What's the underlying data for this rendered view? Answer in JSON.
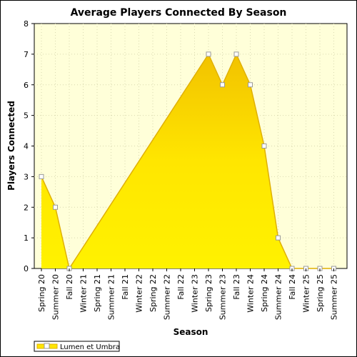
{
  "chart_data": {
    "type": "area",
    "title": "Average Players Connected By Season",
    "xlabel": "Season",
    "ylabel": "Players Connected",
    "ylim": [
      0,
      8
    ],
    "yticks": [
      "0",
      "1",
      "2",
      "3",
      "4",
      "5",
      "6",
      "7",
      "8"
    ],
    "grid": true,
    "legend_position": "bottom-left",
    "categories": [
      "Spring 20",
      "Summer 20",
      "Fall 20",
      "Winter 21",
      "Spring 21",
      "Summer 21",
      "Fall 21",
      "Winter 22",
      "Spring 22",
      "Summer 22",
      "Fall 22",
      "Winter 23",
      "Spring 23",
      "Summer 23",
      "Fall 23",
      "Winter 24",
      "Spring 24",
      "Summer 24",
      "Fall 24",
      "Winter 25",
      "Spring 25",
      "Summer 25"
    ],
    "series": [
      {
        "name": "Lumen et Umbra",
        "color": "#ffe600",
        "values": [
          3,
          2,
          0,
          null,
          null,
          null,
          null,
          null,
          null,
          null,
          null,
          null,
          7,
          6,
          7,
          6,
          4,
          1,
          0,
          0,
          0,
          0
        ]
      }
    ],
    "colors": {
      "plot_background": "#ffffd9",
      "area_fill": "#ffe600",
      "area_edge": "#e0b000",
      "grid": "#d9d9b0"
    }
  }
}
